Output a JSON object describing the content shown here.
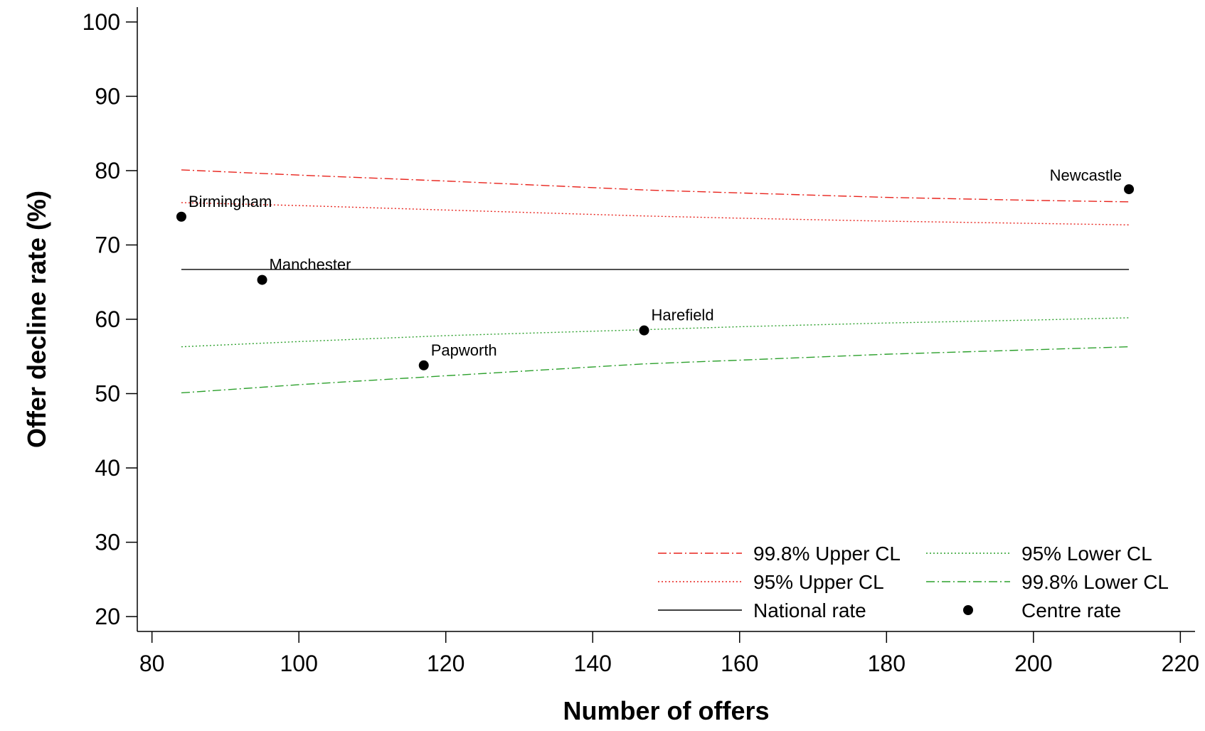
{
  "chart_data": {
    "type": "scatter",
    "xlabel": "Number of offers",
    "ylabel": "Offer decline rate (%)",
    "xlim": [
      78,
      222
    ],
    "ylim": [
      18,
      102
    ],
    "xticks": [
      80,
      100,
      120,
      140,
      160,
      180,
      200,
      220
    ],
    "yticks": [
      20,
      30,
      40,
      50,
      60,
      70,
      80,
      90,
      100
    ],
    "grid": false,
    "legend_position": "bottom-right",
    "series": [
      {
        "name": "99.8% Upper CL",
        "kind": "line",
        "color": "#e8221b",
        "dash": "dash-dot",
        "x": [
          84,
          100,
          120,
          147,
          160,
          180,
          200,
          213
        ],
        "y": [
          80.1,
          79.4,
          78.6,
          77.4,
          77.0,
          76.4,
          76.0,
          75.8
        ]
      },
      {
        "name": "95% Upper CL",
        "kind": "line",
        "color": "#e8221b",
        "dash": "dotted",
        "x": [
          84,
          100,
          120,
          147,
          160,
          180,
          200,
          213
        ],
        "y": [
          75.7,
          75.3,
          74.7,
          73.9,
          73.6,
          73.2,
          72.9,
          72.7
        ]
      },
      {
        "name": "National rate",
        "kind": "line",
        "color": "#000000",
        "dash": "solid",
        "x": [
          84,
          213
        ],
        "y": [
          66.7,
          66.7
        ]
      },
      {
        "name": "95% Lower CL",
        "kind": "line",
        "color": "#2ca02c",
        "dash": "dotted",
        "x": [
          84,
          100,
          120,
          147,
          160,
          180,
          200,
          213
        ],
        "y": [
          56.3,
          57.0,
          57.8,
          58.6,
          59.0,
          59.5,
          59.9,
          60.2
        ]
      },
      {
        "name": "99.8% Lower CL",
        "kind": "line",
        "color": "#2ca02c",
        "dash": "dash-dot",
        "x": [
          84,
          100,
          120,
          147,
          160,
          180,
          200,
          213
        ],
        "y": [
          50.1,
          51.2,
          52.4,
          54.0,
          54.5,
          55.3,
          55.9,
          56.3
        ]
      },
      {
        "name": "Centre rate",
        "kind": "points",
        "color": "#000000",
        "points": [
          {
            "label": "Birmingham",
            "x": 84,
            "y": 73.8
          },
          {
            "label": "Manchester",
            "x": 95,
            "y": 65.3
          },
          {
            "label": "Papworth",
            "x": 117,
            "y": 53.8
          },
          {
            "label": "Harefield",
            "x": 147,
            "y": 58.5
          },
          {
            "label": "Newcastle",
            "x": 213,
            "y": 77.5
          }
        ]
      }
    ]
  }
}
